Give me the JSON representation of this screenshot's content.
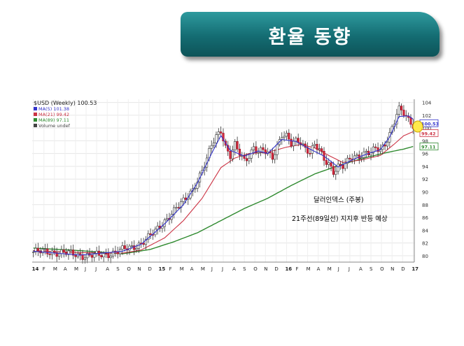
{
  "slide_title": "환율 동향",
  "chart_data": {
    "type": "candlestick",
    "title": "$USD (Weekly) 100.53",
    "legend": [
      {
        "label": "MA(5) 101.38",
        "color": "#3333cc"
      },
      {
        "label": "MA(21) 99.42",
        "color": "#cc3344"
      },
      {
        "label": "MA(89) 97.11",
        "color": "#2f8a2f"
      },
      {
        "label": "Volume undef",
        "color": "#444444"
      }
    ],
    "x_ticks": [
      "14",
      "F",
      "M",
      "A",
      "M",
      "J",
      "J",
      "A",
      "S",
      "O",
      "N",
      "D",
      "15",
      "F",
      "M",
      "A",
      "M",
      "J",
      "J",
      "A",
      "S",
      "O",
      "N",
      "D",
      "16",
      "F",
      "M",
      "A",
      "M",
      "J",
      "J",
      "A",
      "S",
      "O",
      "N",
      "D",
      "17"
    ],
    "y_ticks": [
      80,
      82,
      84,
      86,
      88,
      90,
      92,
      94,
      96,
      98,
      100,
      102,
      104
    ],
    "ylim": [
      79,
      104.5
    ],
    "price_path": [
      [
        0,
        80.6
      ],
      [
        8,
        80.6
      ],
      [
        14,
        80.4
      ],
      [
        22,
        80.0
      ],
      [
        30,
        80.1
      ],
      [
        38,
        80.9
      ],
      [
        42,
        81.3
      ],
      [
        46,
        82.0
      ],
      [
        48,
        82.5
      ],
      [
        52,
        83.8
      ],
      [
        56,
        85.5
      ],
      [
        60,
        87.0
      ],
      [
        64,
        88.5
      ],
      [
        68,
        90.5
      ],
      [
        72,
        93.2
      ],
      [
        74,
        95.0
      ],
      [
        76,
        97.3
      ],
      [
        78,
        98.8
      ],
      [
        80,
        99.8
      ],
      [
        82,
        97.0
      ],
      [
        84,
        95.5
      ],
      [
        86,
        97.2
      ],
      [
        88,
        96.0
      ],
      [
        90,
        95.0
      ],
      [
        92,
        95.8
      ],
      [
        94,
        97.0
      ],
      [
        96,
        96.1
      ],
      [
        98,
        96.4
      ],
      [
        100,
        96.0
      ],
      [
        102,
        95.5
      ],
      [
        104,
        97.3
      ],
      [
        106,
        99.0
      ],
      [
        108,
        98.6
      ],
      [
        110,
        97.4
      ],
      [
        112,
        97.9
      ],
      [
        114,
        98.0
      ],
      [
        116,
        96.9
      ],
      [
        118,
        96.3
      ],
      [
        120,
        97.2
      ],
      [
        122,
        96.5
      ],
      [
        124,
        95.0
      ],
      [
        126,
        94.5
      ],
      [
        128,
        93.3
      ],
      [
        130,
        94.0
      ],
      [
        132,
        93.9
      ],
      [
        134,
        94.6
      ],
      [
        136,
        95.5
      ],
      [
        138,
        95.6
      ],
      [
        140,
        95.9
      ],
      [
        142,
        96.2
      ],
      [
        144,
        96.0
      ],
      [
        146,
        96.7
      ],
      [
        148,
        96.5
      ],
      [
        150,
        97.6
      ],
      [
        152,
        99.2
      ],
      [
        154,
        101.0
      ],
      [
        155,
        102.2
      ],
      [
        156,
        102.8
      ],
      [
        158,
        102.2
      ],
      [
        160,
        101.2
      ],
      [
        162,
        100.53
      ]
    ],
    "ma_lines": [
      {
        "name": "MA(5)",
        "color": "#3333cc",
        "end": 101.38,
        "pts": [
          [
            0,
            80.7
          ],
          [
            20,
            80.1
          ],
          [
            38,
            80.7
          ],
          [
            46,
            81.8
          ],
          [
            56,
            85.0
          ],
          [
            64,
            88.0
          ],
          [
            70,
            91.4
          ],
          [
            76,
            96.0
          ],
          [
            80,
            98.8
          ],
          [
            84,
            96.5
          ],
          [
            90,
            95.6
          ],
          [
            96,
            96.4
          ],
          [
            100,
            96.0
          ],
          [
            106,
            98.2
          ],
          [
            112,
            97.9
          ],
          [
            118,
            96.7
          ],
          [
            124,
            95.6
          ],
          [
            130,
            93.9
          ],
          [
            136,
            95.0
          ],
          [
            142,
            95.9
          ],
          [
            148,
            96.6
          ],
          [
            152,
            98.6
          ],
          [
            156,
            101.8
          ],
          [
            160,
            101.9
          ],
          [
            162,
            101.38
          ]
        ]
      },
      {
        "name": "MA(21)",
        "color": "#cc3344",
        "end": 99.42,
        "pts": [
          [
            0,
            80.8
          ],
          [
            20,
            80.5
          ],
          [
            38,
            80.4
          ],
          [
            46,
            80.9
          ],
          [
            56,
            82.8
          ],
          [
            64,
            85.5
          ],
          [
            72,
            89.0
          ],
          [
            80,
            93.8
          ],
          [
            86,
            95.3
          ],
          [
            92,
            96.0
          ],
          [
            100,
            96.2
          ],
          [
            108,
            97.0
          ],
          [
            114,
            97.4
          ],
          [
            120,
            96.9
          ],
          [
            126,
            95.7
          ],
          [
            132,
            94.6
          ],
          [
            140,
            95.0
          ],
          [
            148,
            95.7
          ],
          [
            154,
            97.5
          ],
          [
            158,
            98.8
          ],
          [
            162,
            99.42
          ]
        ]
      },
      {
        "name": "MA(89)",
        "color": "#2f8a2f",
        "end": 97.11,
        "pts": [
          [
            0,
            81.2
          ],
          [
            20,
            80.8
          ],
          [
            38,
            80.3
          ],
          [
            50,
            81.0
          ],
          [
            60,
            82.2
          ],
          [
            70,
            83.6
          ],
          [
            80,
            85.5
          ],
          [
            90,
            87.4
          ],
          [
            100,
            89.0
          ],
          [
            110,
            91.0
          ],
          [
            120,
            92.8
          ],
          [
            130,
            94.1
          ],
          [
            140,
            95.2
          ],
          [
            150,
            96.1
          ],
          [
            158,
            96.7
          ],
          [
            162,
            97.11
          ]
        ]
      }
    ],
    "value_tags": [
      {
        "label": "100.53",
        "color": "#3333cc"
      },
      {
        "label": "99.42",
        "color": "#cc3344"
      },
      {
        "label": "97.11",
        "color": "#2f8a2f"
      }
    ],
    "annotations": [
      "달러인덱스 (주봉)",
      "21주선(89일선) 지지후 반등 예상"
    ]
  }
}
